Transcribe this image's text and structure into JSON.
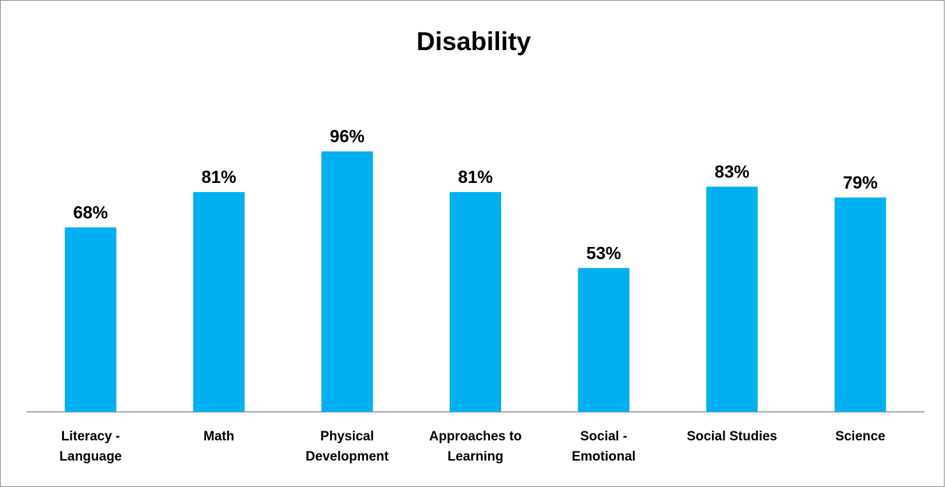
{
  "chart_data": {
    "type": "bar",
    "title": "Disability",
    "categories": [
      [
        "Literacy -",
        "Language"
      ],
      [
        "Math"
      ],
      [
        "Physical",
        "Development"
      ],
      [
        "Approaches to",
        "Learning"
      ],
      [
        "Social -",
        "Emotional"
      ],
      [
        "Social Studies"
      ],
      [
        "Science"
      ]
    ],
    "values": [
      68,
      81,
      96,
      81,
      53,
      83,
      79
    ],
    "data_labels": [
      "68%",
      "81%",
      "96%",
      "81%",
      "53%",
      "83%",
      "79%"
    ],
    "ylim": [
      0,
      100
    ],
    "grid": false,
    "legend": "none",
    "bar_color": "#00b0f0",
    "axis_color": "#8c8c8c"
  }
}
